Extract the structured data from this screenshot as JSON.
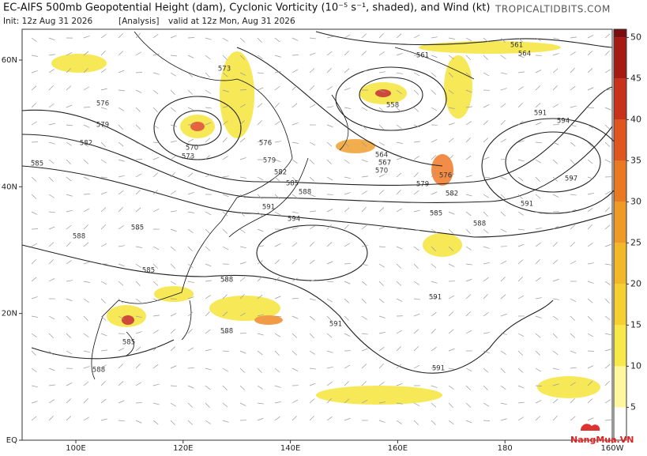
{
  "header": {
    "title": "EC-AIFS 500mb Geopotential Height (dam), Cyclonic Vorticity (10⁻⁵ s⁻¹, shaded), and Wind (kt)",
    "init": "Init: 12z Aug 31 2026",
    "tag": "[Analysis]",
    "valid": "valid at 12z Mon, Aug 31 2026",
    "site": "TROPICALTIDBITS.COM"
  },
  "map": {
    "lat_ticks": [
      {
        "value": 60,
        "label": "60N"
      },
      {
        "value": 40,
        "label": "40N"
      },
      {
        "value": 20,
        "label": "20N"
      },
      {
        "value": 0,
        "label": "EQ"
      }
    ],
    "lon_ticks": [
      {
        "value": 100,
        "label": "100E"
      },
      {
        "value": 120,
        "label": "120E"
      },
      {
        "value": 140,
        "label": "140E"
      },
      {
        "value": 160,
        "label": "160E"
      },
      {
        "value": 180,
        "label": "180"
      },
      {
        "value": 200,
        "label": "160W"
      }
    ],
    "contour_labels": [
      573,
      576,
      579,
      582,
      585,
      570,
      573,
      576,
      579,
      582,
      585,
      588,
      591,
      594,
      588,
      585,
      585,
      588,
      588,
      585,
      588,
      561,
      558,
      564,
      567,
      570,
      576,
      579,
      582,
      585,
      588,
      591,
      597,
      591,
      594,
      561,
      564,
      591,
      591,
      591
    ]
  },
  "colorbar": {
    "range": [
      1,
      51
    ],
    "ticks": [
      5,
      10,
      15,
      20,
      25,
      30,
      35,
      40,
      45,
      50
    ]
  },
  "watermark": "NangMua.VN"
}
